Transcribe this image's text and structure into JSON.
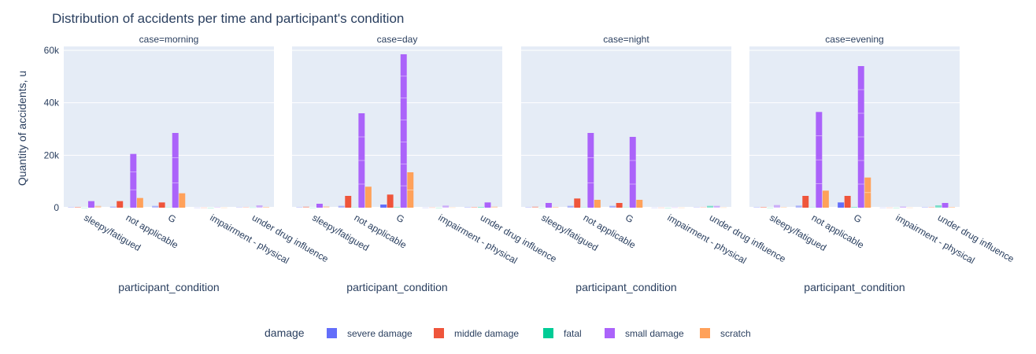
{
  "chart_data": {
    "type": "bar",
    "title": "Distribution of accidents per time and participant's condition",
    "ylabel": "Quantity of accidents, u",
    "xlabel": "participant_condition",
    "ylim": [
      0,
      61500
    ],
    "yticks": [
      0,
      20000,
      40000,
      60000
    ],
    "ytick_labels": [
      "0",
      "20k",
      "40k",
      "60k"
    ],
    "categories": [
      "sleepy/fatigued",
      "not applicable",
      "G",
      "impairment - physical",
      "under drug influence"
    ],
    "legend": {
      "title": "damage",
      "placement": "bottom-center",
      "entries": [
        "severe damage",
        "middle damage",
        "fatal",
        "small damage",
        "scratch"
      ]
    },
    "colors": {
      "severe damage": "#636efa",
      "middle damage": "#ef553b",
      "fatal": "#00cc96",
      "small damage": "#ab63fa",
      "scratch": "#ffa15a"
    },
    "panels": [
      {
        "label": "case=morning",
        "series": [
          {
            "name": "severe damage",
            "values": [
              200,
              400,
              700,
              50,
              150
            ]
          },
          {
            "name": "middle damage",
            "values": [
              300,
              2500,
              2000,
              50,
              150
            ]
          },
          {
            "name": "fatal",
            "values": [
              20,
              100,
              150,
              10,
              100
            ]
          },
          {
            "name": "small damage",
            "values": [
              2500,
              20500,
              28500,
              150,
              900
            ]
          },
          {
            "name": "scratch",
            "values": [
              700,
              3700,
              5500,
              50,
              300
            ]
          }
        ]
      },
      {
        "label": "case=day",
        "series": [
          {
            "name": "severe damage",
            "values": [
              200,
              700,
              1200,
              50,
              200
            ]
          },
          {
            "name": "middle damage",
            "values": [
              400,
              4500,
              5000,
              100,
              250
            ]
          },
          {
            "name": "fatal",
            "values": [
              30,
              150,
              250,
              20,
              300
            ]
          },
          {
            "name": "small damage",
            "values": [
              1500,
              36000,
              58500,
              800,
              2000
            ]
          },
          {
            "name": "scratch",
            "values": [
              500,
              8000,
              13500,
              100,
              400
            ]
          }
        ]
      },
      {
        "label": "case=night",
        "series": [
          {
            "name": "severe damage",
            "values": [
              200,
              700,
              700,
              50,
              150
            ]
          },
          {
            "name": "middle damage",
            "values": [
              400,
              3500,
              1800,
              50,
              150
            ]
          },
          {
            "name": "fatal",
            "values": [
              30,
              150,
              150,
              10,
              700
            ]
          },
          {
            "name": "small damage",
            "values": [
              1800,
              28500,
              27000,
              100,
              700
            ]
          },
          {
            "name": "scratch",
            "values": [
              300,
              3000,
              3000,
              50,
              100
            ]
          }
        ]
      },
      {
        "label": "case=evening",
        "series": [
          {
            "name": "severe damage",
            "values": [
              200,
              800,
              2000,
              50,
              200
            ]
          },
          {
            "name": "middle damage",
            "values": [
              300,
              4500,
              4500,
              50,
              200
            ]
          },
          {
            "name": "fatal",
            "values": [
              30,
              150,
              300,
              20,
              900
            ]
          },
          {
            "name": "small damage",
            "values": [
              1000,
              36500,
              54000,
              400,
              1800
            ]
          },
          {
            "name": "scratch",
            "values": [
              200,
              6500,
              11500,
              50,
              300
            ]
          }
        ]
      }
    ]
  }
}
